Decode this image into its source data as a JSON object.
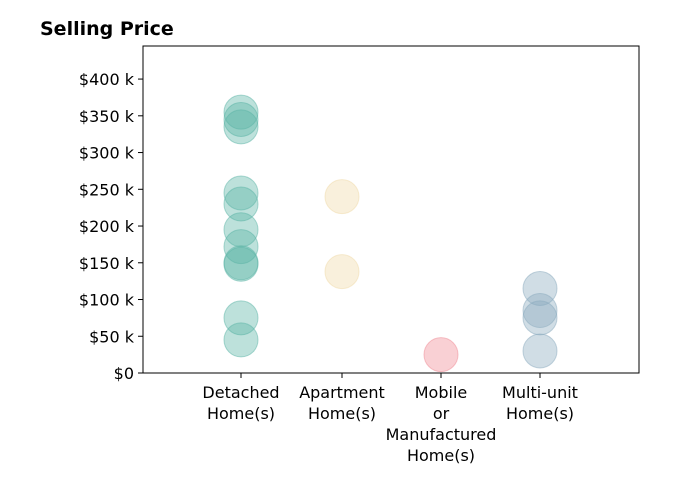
{
  "chart_data": {
    "type": "scatter",
    "title": "Selling Price",
    "xlabel": "",
    "ylabel": "",
    "categories": [
      [
        "Detached",
        "Home(s)"
      ],
      [
        "Apartment",
        "Home(s)"
      ],
      [
        "Mobile",
        "or",
        "Manufactured",
        "Home(s)"
      ],
      [
        "Multi-unit",
        "Home(s)"
      ]
    ],
    "ylim": [
      0,
      445000
    ],
    "yticks": [
      0,
      50000,
      100000,
      150000,
      200000,
      250000,
      300000,
      350000,
      400000
    ],
    "ytick_labels": [
      "$0",
      "$50 k",
      "$100 k",
      "$150 k",
      "$200 k",
      "$250 k",
      "$300 k",
      "$350 k",
      "$400 k"
    ],
    "grid": false,
    "series": [
      {
        "category_index": 0,
        "color": "#5ab4a5",
        "values": [
          355000,
          345000,
          335000,
          245000,
          230000,
          195000,
          172000,
          150000,
          148000,
          75000,
          45000
        ]
      },
      {
        "category_index": 1,
        "color": "#f0d9a8",
        "values": [
          240000,
          138000
        ]
      },
      {
        "category_index": 2,
        "color": "#f08a93",
        "values": [
          25000
        ]
      },
      {
        "category_index": 3,
        "color": "#8aa9bd",
        "values": [
          115000,
          85000,
          75000,
          30000
        ]
      }
    ]
  }
}
